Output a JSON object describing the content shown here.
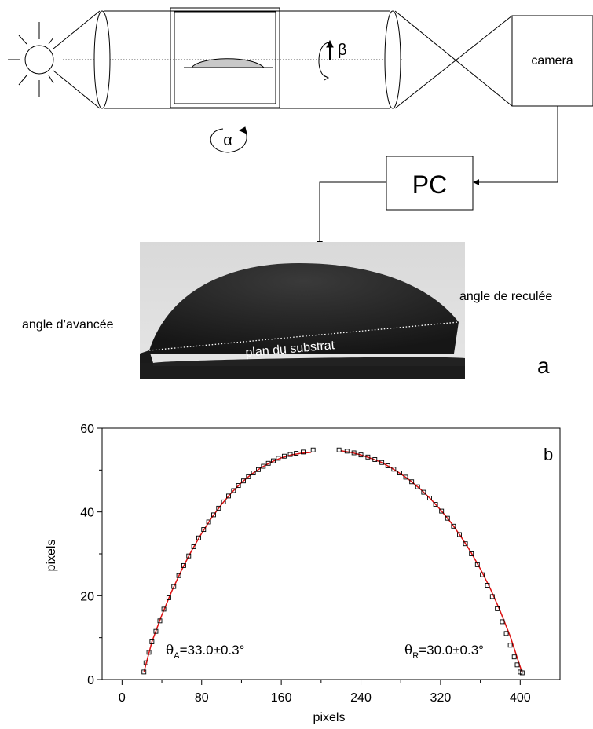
{
  "panel_a": {
    "camera_label": "camera",
    "pc_label": "PC",
    "alpha_label": "α",
    "beta_label": "β",
    "advancing_label": "angle d’avancée",
    "receding_label": "angle de reculée",
    "substrate_label": "plan du substrat",
    "panel_letter": "a"
  },
  "panel_b": {
    "panel_letter": "b",
    "theta_a": {
      "symbol": "θ",
      "sub": "A",
      "text": "=33.0±0.3°"
    },
    "theta_r": {
      "symbol": "θ",
      "sub": "R",
      "text": "=30.0±0.3°"
    }
  },
  "chart_data": {
    "type": "scatter",
    "title": "",
    "xlabel": "pixels",
    "ylabel": "pixels",
    "xlim": [
      -20,
      440
    ],
    "ylim": [
      0,
      60
    ],
    "xticks": [
      0,
      80,
      160,
      240,
      320,
      400
    ],
    "yticks": [
      0,
      20,
      40,
      60
    ],
    "grid": false,
    "series": [
      {
        "marker": "open-square",
        "color": "#000000",
        "x": [
          22,
          24,
          27,
          30,
          34,
          38,
          42,
          47,
          52,
          57,
          62,
          67,
          72,
          77,
          82,
          87,
          92,
          97,
          102,
          107,
          112,
          117,
          122,
          127,
          132,
          137,
          142,
          147,
          152,
          157,
          163,
          169,
          175,
          182,
          192
        ],
        "y": [
          1.8,
          4.0,
          6.5,
          9.0,
          11.5,
          14.0,
          16.8,
          19.5,
          22.2,
          24.8,
          27.2,
          29.5,
          31.7,
          33.8,
          35.8,
          37.6,
          39.3,
          40.9,
          42.4,
          43.8,
          45.1,
          46.3,
          47.4,
          48.4,
          49.3,
          50.1,
          50.9,
          51.6,
          52.2,
          52.8,
          53.3,
          53.7,
          54.0,
          54.3,
          54.8
        ]
      },
      {
        "marker": "open-square",
        "color": "#000000",
        "x": [
          218,
          226,
          233,
          240,
          247,
          254,
          261,
          267,
          273,
          279,
          285,
          291,
          297,
          303,
          309,
          315,
          321,
          327,
          333,
          339,
          345,
          351,
          357,
          362,
          367,
          372,
          377,
          382,
          386,
          390,
          394,
          397,
          400,
          402
        ],
        "y": [
          54.8,
          54.5,
          54.1,
          53.6,
          53.1,
          52.5,
          51.8,
          51.0,
          50.2,
          49.3,
          48.3,
          47.2,
          46.0,
          44.7,
          43.3,
          41.8,
          40.2,
          38.5,
          36.6,
          34.6,
          32.4,
          30.0,
          27.4,
          25.0,
          22.5,
          19.8,
          16.9,
          13.8,
          11.0,
          8.2,
          5.4,
          3.5,
          1.8,
          1.6
        ]
      },
      {
        "name": "fit",
        "marker": "line",
        "color": "#dd1111",
        "x": [
          22,
          30,
          40,
          50,
          60,
          70,
          80,
          90,
          100,
          110,
          120,
          130,
          140,
          150,
          160,
          170,
          180,
          190
        ],
        "y": [
          1.8,
          9.0,
          15.4,
          21.1,
          26.2,
          30.8,
          34.9,
          38.6,
          41.8,
          44.6,
          47.0,
          49.0,
          50.6,
          51.9,
          52.9,
          53.6,
          54.0,
          54.2
        ]
      },
      {
        "name": "fit",
        "marker": "line",
        "color": "#dd1111",
        "x": [
          220,
          230,
          240,
          250,
          260,
          270,
          280,
          290,
          300,
          310,
          320,
          330,
          340,
          350,
          360,
          370,
          380,
          390,
          402
        ],
        "y": [
          54.6,
          54.2,
          53.6,
          52.8,
          51.9,
          50.6,
          49.1,
          47.4,
          45.4,
          43.1,
          40.5,
          37.6,
          34.3,
          30.6,
          26.4,
          21.7,
          16.3,
          10.3,
          1.6
        ]
      }
    ]
  }
}
